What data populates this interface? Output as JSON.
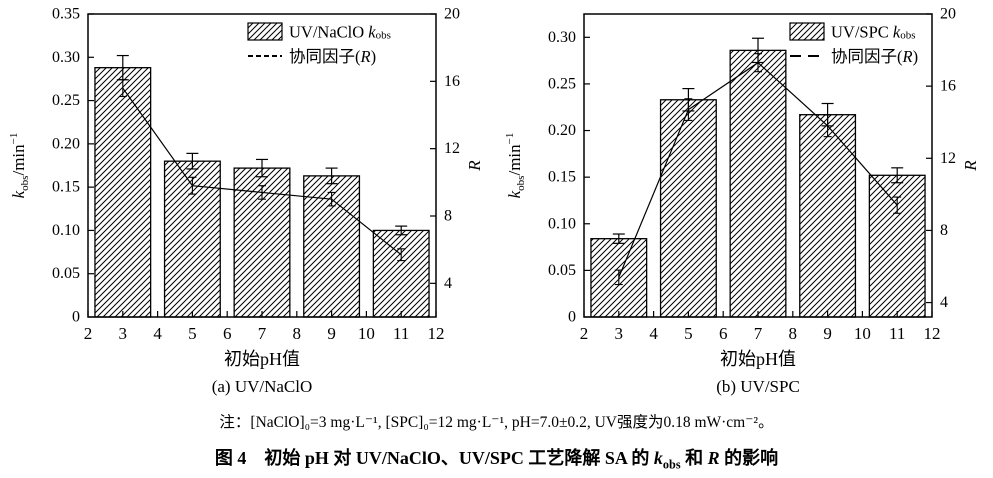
{
  "figure": {
    "note": "注：[NaClO]₀=3 mg·L⁻¹, [SPC]₀=12 mg·L⁻¹, pH=7.0±0.2, UV强度为0.18 mW·cm⁻²。",
    "caption_text": "图 4　初始 pH 对 UV/NaClO、UV/SPC 工艺降解 SA 的 kobs 和 R 的影响",
    "caption_rich": [
      {
        "t": "图 4　初始 pH 对 UV/NaClO、UV/SPC 工艺降解 SA 的 "
      },
      {
        "t": "k",
        "i": 1
      },
      {
        "t": "obs",
        "sub": 1
      },
      {
        "t": " 和 "
      },
      {
        "t": "R",
        "i": 1
      },
      {
        "t": " 的影响"
      }
    ]
  },
  "colors": {
    "ink": "#000000",
    "background": "#ffffff"
  },
  "chart_data": [
    {
      "type": "bar",
      "subtitle": "(a) UV/NaClO",
      "xlabel": "初始pH值",
      "ylabel_left": "kobs/min⁻¹",
      "ylabel_left_rich": [
        {
          "t": "k",
          "i": 1
        },
        {
          "t": "obs",
          "sub": 1
        },
        {
          "t": "/min"
        },
        {
          "t": "−1",
          "sup": 1
        }
      ],
      "ylabel_right": "R",
      "ylabel_right_rich": [
        {
          "t": "R",
          "i": 1
        }
      ],
      "categories": [
        3,
        5,
        7,
        9,
        11
      ],
      "series": [
        {
          "name": "UV/NaClO kobs",
          "axis": "left",
          "kind": "bar",
          "rich": [
            {
              "t": "UV/NaClO "
            },
            {
              "t": "k",
              "i": 1
            },
            {
              "t": "obs",
              "sub": 1
            }
          ],
          "values": [
            0.288,
            0.18,
            0.172,
            0.163,
            0.1
          ],
          "errors": [
            0.014,
            0.009,
            0.01,
            0.009,
            0.005
          ]
        },
        {
          "name": "协同因子(R)",
          "axis": "right",
          "kind": "line",
          "rich": [
            {
              "t": "协同因子("
            },
            {
              "t": "R",
              "i": 1
            },
            {
              "t": ")"
            }
          ],
          "values": [
            15.6,
            9.8,
            9.4,
            9.0,
            5.7
          ],
          "errors": [
            0.5,
            0.5,
            0.4,
            0.4,
            0.35
          ]
        }
      ],
      "xlim": [
        2,
        12
      ],
      "xticks": [
        "2",
        "3",
        "4",
        "5",
        "6",
        "7",
        "8",
        "9",
        "10",
        "11",
        "12"
      ],
      "ylim_left": [
        0,
        0.35
      ],
      "yticks_left": {
        "values": [
          0,
          0.05,
          0.1,
          0.15,
          0.2,
          0.25,
          0.3,
          0.35
        ],
        "labels": [
          "0",
          "0.05",
          "0.10",
          "0.15",
          "0.20",
          "0.25",
          "0.30",
          "0.35"
        ]
      },
      "ylim_right": [
        2,
        20
      ],
      "yticks_right": {
        "values": [
          4,
          8,
          12,
          16,
          20
        ],
        "labels": [
          "4",
          "8",
          "12",
          "16",
          "20"
        ]
      },
      "bar_width": 1.6,
      "hatch": "diagonal",
      "grid": false,
      "legend_position": "top-right"
    },
    {
      "type": "bar",
      "subtitle": "(b) UV/SPC",
      "xlabel": "初始pH值",
      "ylabel_left": "kobs/min⁻¹",
      "ylabel_left_rich": [
        {
          "t": "k",
          "i": 1
        },
        {
          "t": "obs",
          "sub": 1
        },
        {
          "t": "/min"
        },
        {
          "t": "−1",
          "sup": 1
        }
      ],
      "ylabel_right": "R",
      "ylabel_right_rich": [
        {
          "t": "R",
          "i": 1
        }
      ],
      "categories": [
        3,
        5,
        7,
        9,
        11
      ],
      "series": [
        {
          "name": "UV/SPC kobs",
          "axis": "left",
          "kind": "bar",
          "rich": [
            {
              "t": "UV/SPC "
            },
            {
              "t": "k",
              "i": 1
            },
            {
              "t": "obs",
              "sub": 1
            }
          ],
          "values": [
            0.084,
            0.233,
            0.286,
            0.217,
            0.152
          ],
          "errors": [
            0.005,
            0.012,
            0.013,
            0.012,
            0.008
          ]
        },
        {
          "name": "协同因子(R)",
          "axis": "right",
          "kind": "line",
          "rich": [
            {
              "t": "协同因子("
            },
            {
              "t": "R",
              "i": 1
            },
            {
              "t": ")"
            }
          ],
          "values": [
            5.4,
            14.7,
            17.3,
            13.8,
            9.4
          ],
          "errors": [
            0.4,
            0.6,
            0.5,
            0.6,
            0.45
          ]
        }
      ],
      "xlim": [
        2,
        12
      ],
      "xticks": [
        "2",
        "3",
        "4",
        "5",
        "6",
        "7",
        "8",
        "9",
        "10",
        "11",
        "12"
      ],
      "ylim_left": [
        0,
        0.325
      ],
      "yticks_left": {
        "values": [
          0,
          0.05,
          0.1,
          0.15,
          0.2,
          0.25,
          0.3
        ],
        "labels": [
          "0",
          "0.05",
          "0.10",
          "0.15",
          "0.20",
          "0.25",
          "0.30"
        ]
      },
      "ylim_right": [
        3.2,
        20
      ],
      "yticks_right": {
        "values": [
          4,
          8,
          12,
          16,
          20
        ],
        "labels": [
          "4",
          "8",
          "12",
          "16",
          "20"
        ]
      },
      "bar_width": 1.6,
      "hatch": "diagonal",
      "grid": false,
      "legend_position": "top-right"
    }
  ]
}
